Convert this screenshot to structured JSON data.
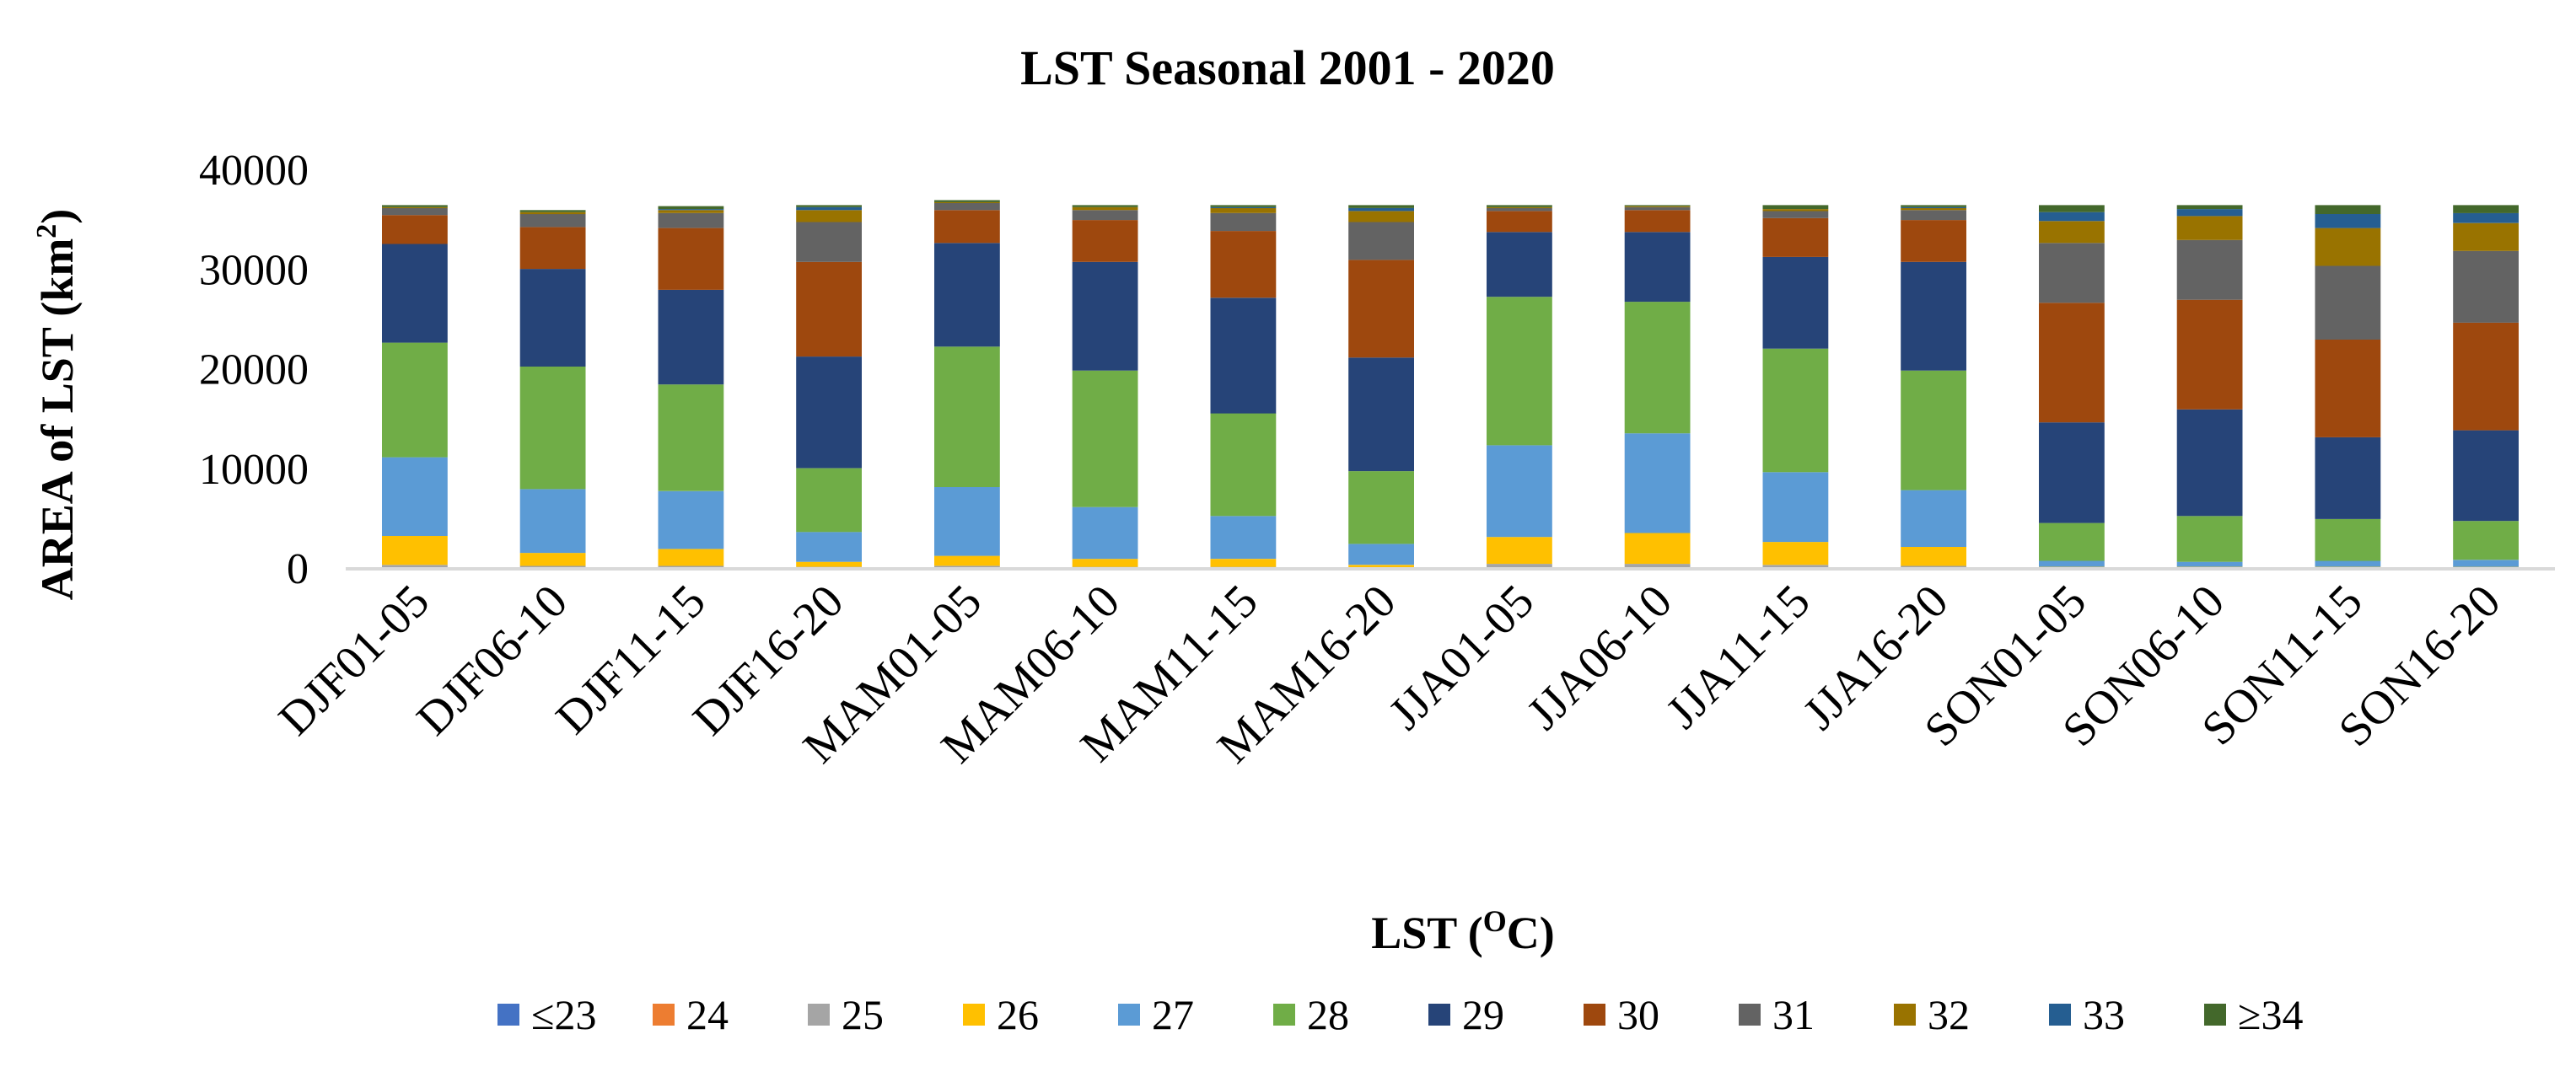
{
  "chart_data": {
    "type": "bar",
    "stacked": true,
    "title": "LST Seasonal 2001 - 2020",
    "xlabel": "LST (",
    "xlabel_sup": "O",
    "xlabel_suffix": "C)",
    "ylabel": "AREA of LST (km",
    "ylabel_sup": "2",
    "ylabel_suffix": ")",
    "ylim": [
      0,
      40000
    ],
    "yticks": [
      0,
      10000,
      20000,
      30000,
      40000
    ],
    "ytick_labels": [
      "0",
      "10000",
      "20000",
      "30000",
      "40000"
    ],
    "categories": [
      "DJF01-05",
      "DJF06-10",
      "DJF11-15",
      "DJF16-20",
      "MAM01-05",
      "MAM06-10",
      "MAM11-15",
      "MAM16-20",
      "JJA01-05",
      "JJA06-10",
      "JJA11-15",
      "JJA16-20",
      "SON01-05",
      "SON06-10",
      "SON11-15",
      "SON16-20"
    ],
    "legend_position": "bottom",
    "series": [
      {
        "name": "≤23",
        "color": "#4472C4",
        "values": [
          0,
          0,
          0,
          0,
          0,
          0,
          0,
          0,
          0,
          0,
          0,
          0,
          0,
          0,
          0,
          0
        ]
      },
      {
        "name": "24",
        "color": "#ED7D31",
        "values": [
          0,
          0,
          0,
          0,
          0,
          0,
          0,
          0,
          0,
          0,
          0,
          0,
          0,
          0,
          0,
          0
        ]
      },
      {
        "name": "25",
        "color": "#A5A5A5",
        "values": [
          400,
          300,
          300,
          200,
          300,
          200,
          200,
          150,
          500,
          500,
          400,
          300,
          100,
          100,
          100,
          100
        ]
      },
      {
        "name": "26",
        "color": "#FFC000",
        "values": [
          2900,
          1300,
          1700,
          500,
          1000,
          800,
          800,
          250,
          2700,
          3100,
          2300,
          1900,
          100,
          100,
          100,
          100
        ]
      },
      {
        "name": "27",
        "color": "#5B9BD5",
        "values": [
          7900,
          6400,
          5800,
          3000,
          6900,
          5200,
          4300,
          2100,
          9200,
          10000,
          7000,
          5700,
          600,
          500,
          600,
          700
        ]
      },
      {
        "name": "28",
        "color": "#70AD47",
        "values": [
          11500,
          12300,
          10700,
          6400,
          14100,
          13700,
          10300,
          7300,
          14900,
          13200,
          12400,
          12000,
          3800,
          4600,
          4200,
          3900
        ]
      },
      {
        "name": "29",
        "color": "#264478",
        "values": [
          9900,
          9800,
          9500,
          11200,
          10400,
          10900,
          11600,
          11400,
          6500,
          7000,
          9200,
          10900,
          10100,
          10700,
          8200,
          9100
        ]
      },
      {
        "name": "30",
        "color": "#9E480E",
        "values": [
          2900,
          4200,
          6200,
          9500,
          3300,
          4200,
          6700,
          9800,
          2100,
          2200,
          3900,
          4200,
          12000,
          11000,
          9800,
          10800
        ]
      },
      {
        "name": "31",
        "color": "#636363",
        "values": [
          700,
          1300,
          1500,
          4000,
          700,
          1000,
          1800,
          3800,
          300,
          300,
          700,
          1000,
          6000,
          6000,
          7400,
          7200
        ]
      },
      {
        "name": "32",
        "color": "#997300",
        "values": [
          100,
          200,
          300,
          1200,
          100,
          300,
          500,
          1100,
          100,
          100,
          200,
          200,
          2200,
          2400,
          3800,
          2800
        ]
      },
      {
        "name": "33",
        "color": "#255E91",
        "values": [
          0,
          0,
          100,
          300,
          0,
          0,
          100,
          300,
          0,
          0,
          0,
          100,
          900,
          700,
          1400,
          1000
        ]
      },
      {
        "name": "≥34",
        "color": "#43682B",
        "values": [
          200,
          200,
          300,
          200,
          200,
          200,
          200,
          300,
          200,
          100,
          400,
          200,
          700,
          400,
          900,
          800
        ]
      }
    ]
  }
}
